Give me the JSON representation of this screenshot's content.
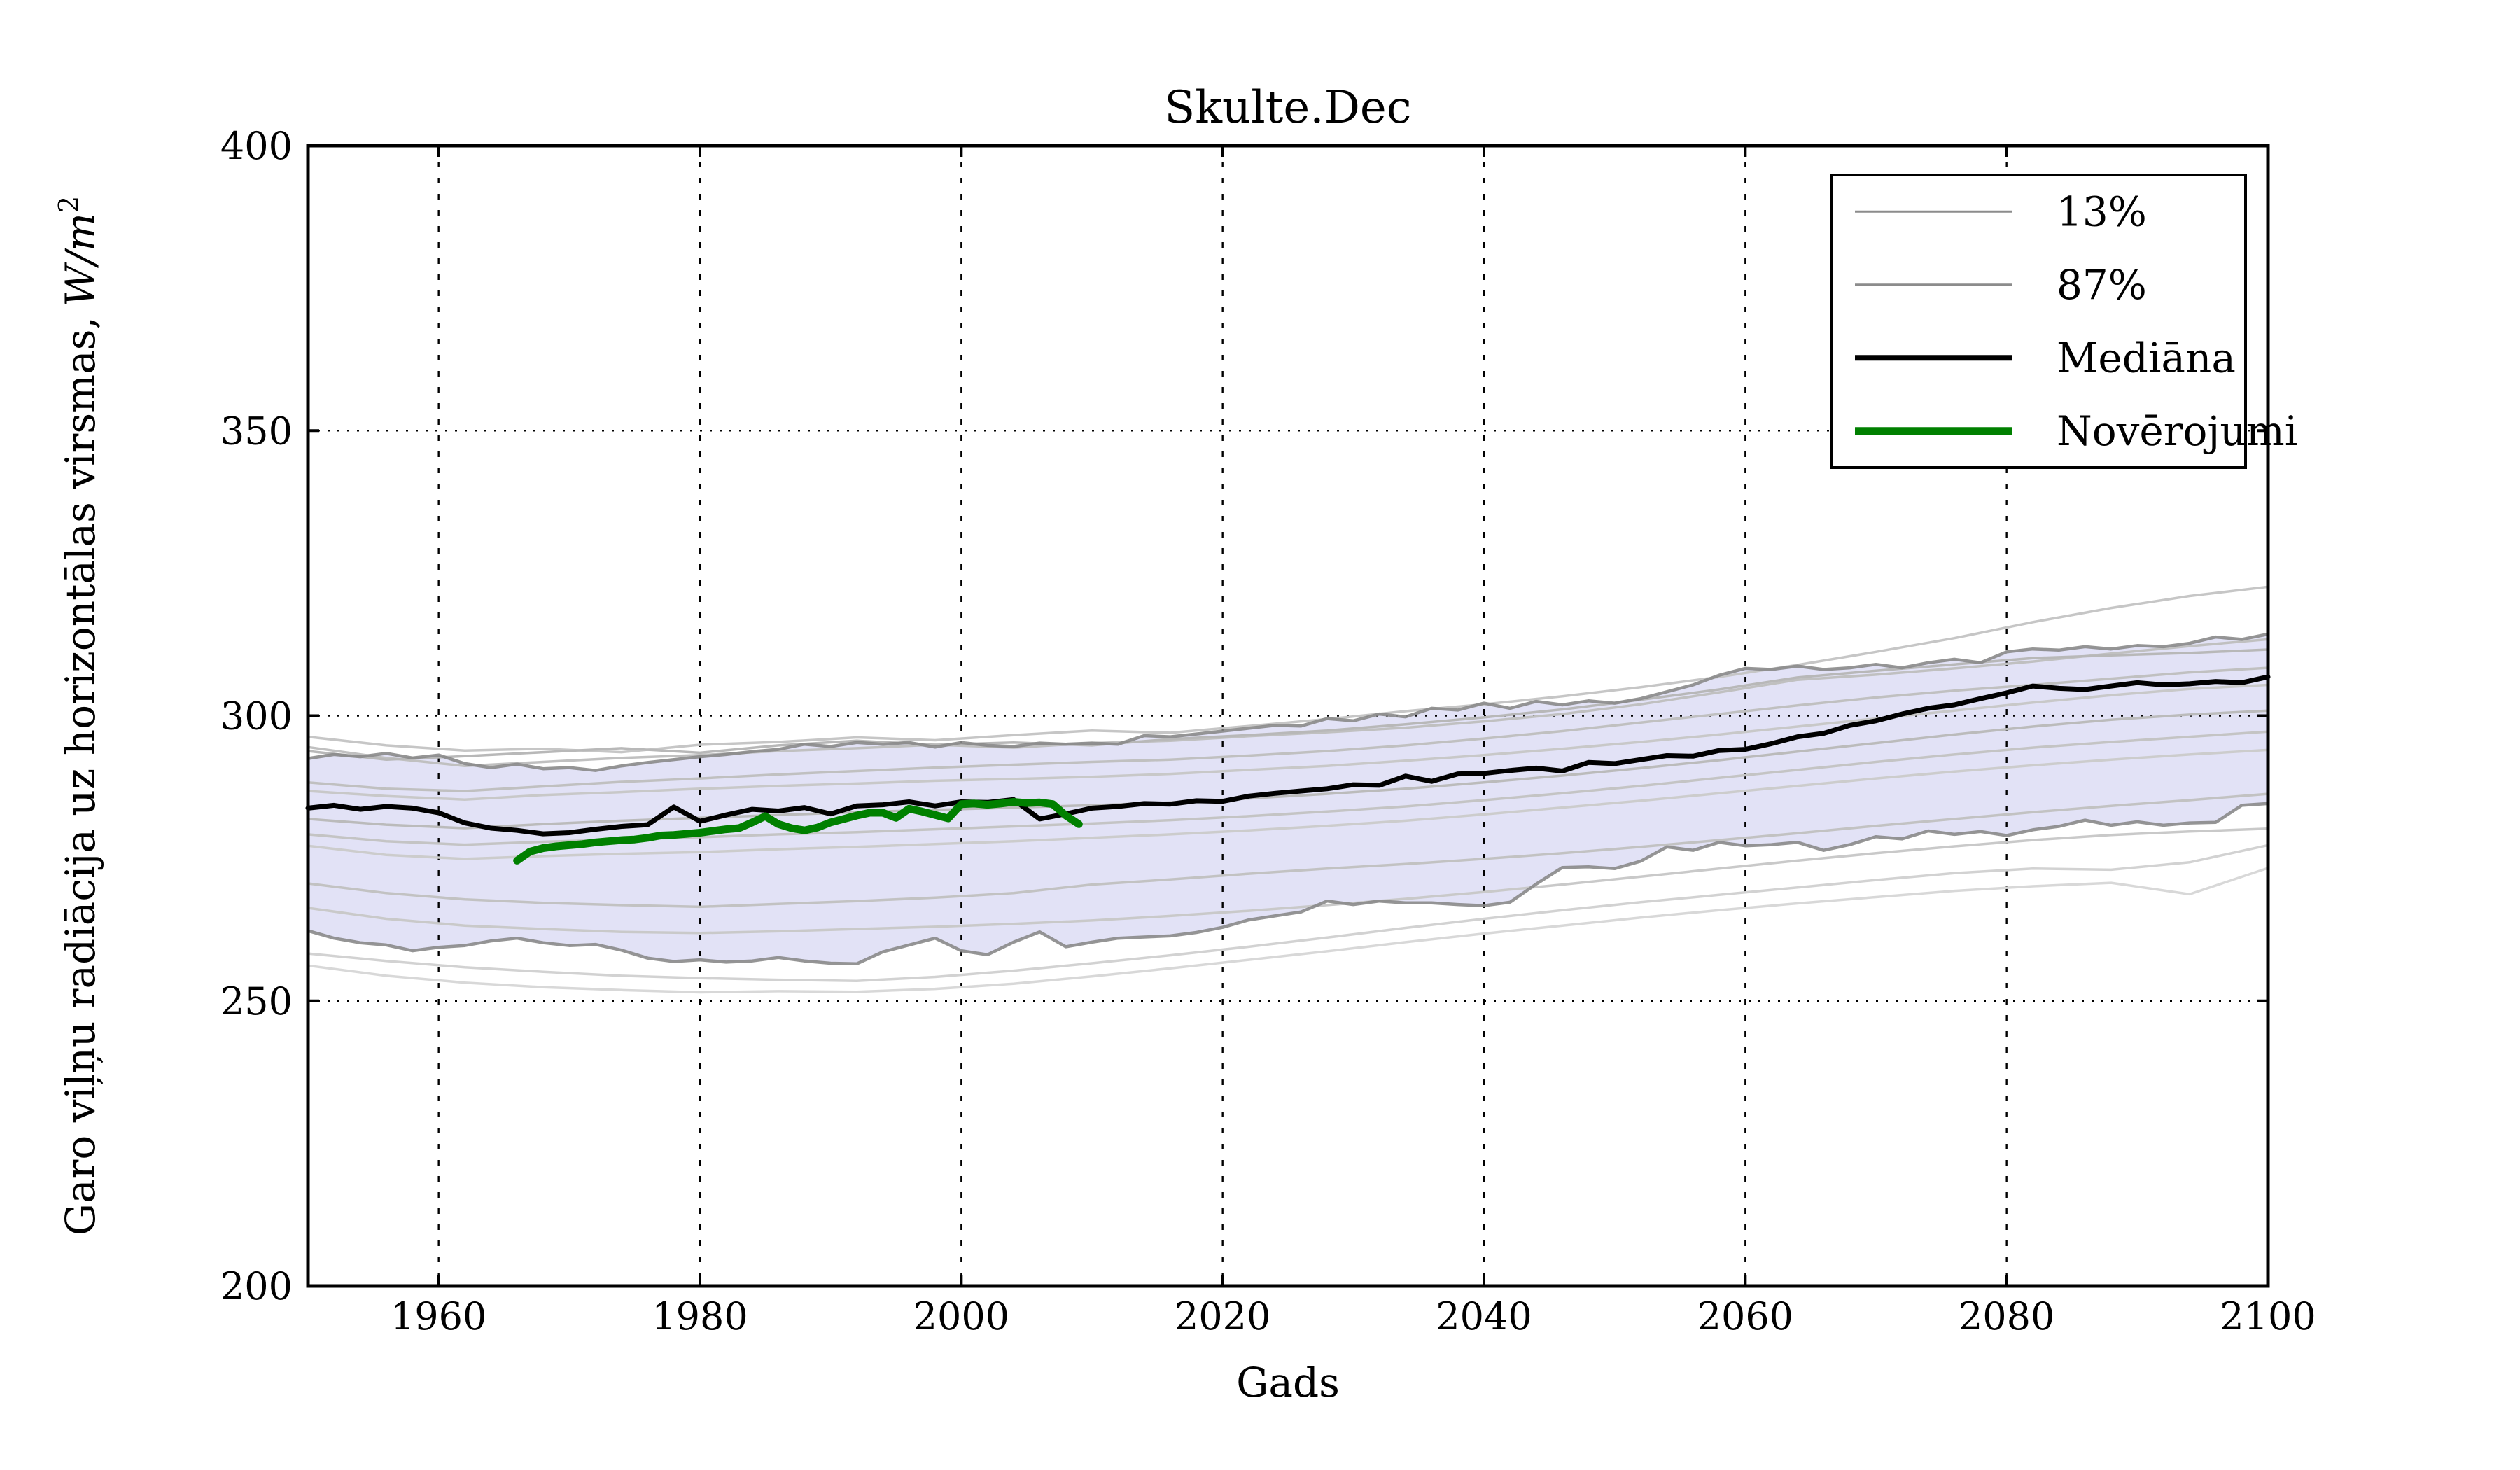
{
  "title": "Skulte.Dec",
  "colors": {
    "background": "#ffffff",
    "band_fill": "#e2e2f6",
    "percentile_line": "#8a8a8a",
    "median_line": "#000000",
    "observations_line": "#008000",
    "grid": "#000000",
    "axis": "#000000"
  },
  "chart_data": {
    "type": "line",
    "title": "Skulte.Dec",
    "xlabel": "Gads",
    "ylabel": "Garo viļņu radiācija uz horizontālas virsmas, W/m²",
    "ylabel_text": "Garo viļņu radiācija uz horizontālas virsmas,",
    "ylabel_unit": "W/m",
    "ylabel_unit_sup": "2",
    "xlim": [
      1950,
      2100
    ],
    "ylim": [
      200,
      400
    ],
    "xticks": [
      1960,
      1980,
      2000,
      2020,
      2040,
      2060,
      2080,
      2100
    ],
    "yticks": [
      200,
      250,
      300,
      350,
      400
    ],
    "grid": "dotted",
    "legend": {
      "position": "upper right",
      "entries": [
        {
          "label": "13%",
          "color": "#8c8c8c",
          "stroke_width": 3
        },
        {
          "label": "87%",
          "color": "#8c8c8c",
          "stroke_width": 3
        },
        {
          "label": "Mediāna",
          "color": "#000000",
          "stroke_width": 8
        },
        {
          "label": "Novērojumi",
          "color": "#008000",
          "stroke_width": 11
        }
      ]
    },
    "band": {
      "name": "13-87% interval",
      "fill": "#e2e2f6",
      "upper_ref": "p87",
      "lower_ref": "p13"
    },
    "series": [
      {
        "id": "p13",
        "name": "13%",
        "role": "percentile-lower",
        "color": "#8a8a8a",
        "width": 4.5,
        "opacity": 0.9,
        "x0": 1950,
        "dx": 2,
        "values": [
          262.3,
          261.0,
          260.2,
          259.8,
          258.8,
          259.4,
          259.7,
          260.5,
          261.0,
          260.2,
          259.7,
          259.9,
          258.9,
          257.5,
          256.9,
          257.2,
          256.8,
          257.0,
          257.6,
          257.0,
          256.6,
          256.5,
          258.6,
          259.8,
          261.0,
          258.8,
          258.1,
          260.3,
          262.1,
          259.5,
          260.3,
          261.0,
          261.2,
          261.4,
          262.0,
          262.9,
          264.2,
          264.9,
          265.6,
          267.5,
          266.9,
          267.5,
          267.2,
          267.2,
          266.9,
          266.7,
          267.3,
          270.5,
          273.4,
          273.5,
          273.2,
          274.5,
          277.0,
          276.4,
          277.8,
          277.2,
          277.4,
          277.8,
          276.4,
          277.4,
          278.8,
          278.4,
          279.8,
          279.2,
          279.7,
          279.0,
          280.0,
          280.6,
          281.7,
          280.8,
          281.4,
          280.8,
          281.2,
          281.3,
          284.3,
          284.6
        ]
      },
      {
        "id": "p87",
        "name": "87%",
        "role": "percentile-upper",
        "color": "#8a8a8a",
        "width": 4.5,
        "opacity": 0.9,
        "x0": 1950,
        "dx": 2,
        "values": [
          292.5,
          293.2,
          292.8,
          293.4,
          292.6,
          293.1,
          291.6,
          290.9,
          291.5,
          290.7,
          290.9,
          290.4,
          291.2,
          291.8,
          292.3,
          292.8,
          293.2,
          293.7,
          294.1,
          295.0,
          294.6,
          295.3,
          295.0,
          295.3,
          294.5,
          295.3,
          294.8,
          294.6,
          295.2,
          295.0,
          295.2,
          295.0,
          296.5,
          296.3,
          296.8,
          297.3,
          297.8,
          298.3,
          298.2,
          299.5,
          299.1,
          300.3,
          299.8,
          301.3,
          301.0,
          302.2,
          301.3,
          302.5,
          301.9,
          302.6,
          302.2,
          303.0,
          304.2,
          305.4,
          307.1,
          308.3,
          308.1,
          308.7,
          308.1,
          308.4,
          309.0,
          308.4,
          309.3,
          309.9,
          309.3,
          311.2,
          311.7,
          311.5,
          312.1,
          311.7,
          312.3,
          312.1,
          312.7,
          313.8,
          313.4,
          314.3
        ]
      },
      {
        "id": "median",
        "name": "Mediāna",
        "role": "median",
        "color": "#000000",
        "width": 7,
        "opacity": 1,
        "x0": 1950,
        "dx": 2,
        "values": [
          283.8,
          284.3,
          283.6,
          284.1,
          283.8,
          283.0,
          281.2,
          280.3,
          279.9,
          279.3,
          279.5,
          280.1,
          280.6,
          280.9,
          284.0,
          281.5,
          282.6,
          283.6,
          283.3,
          283.9,
          282.8,
          284.2,
          284.4,
          284.9,
          284.2,
          284.9,
          284.8,
          285.3,
          281.9,
          282.8,
          283.8,
          284.1,
          284.6,
          284.5,
          285.1,
          285.0,
          285.9,
          286.4,
          286.8,
          287.2,
          287.9,
          287.8,
          289.4,
          288.5,
          289.8,
          289.9,
          290.4,
          290.8,
          290.3,
          291.8,
          291.6,
          292.3,
          293.0,
          292.9,
          293.9,
          294.1,
          295.1,
          296.3,
          296.9,
          298.3,
          299.1,
          300.3,
          301.3,
          301.9,
          303.0,
          304.0,
          305.2,
          304.8,
          304.6,
          305.2,
          305.8,
          305.4,
          305.6,
          306.0,
          305.8,
          306.8
        ]
      },
      {
        "id": "observations",
        "name": "Novērojumi",
        "role": "observations",
        "color": "#008000",
        "width": 11,
        "opacity": 1,
        "x0": 1966,
        "dx": 1,
        "values": [
          274.6,
          276.2,
          276.8,
          277.1,
          277.3,
          277.5,
          277.8,
          278.0,
          278.2,
          278.3,
          278.6,
          279.0,
          279.1,
          279.3,
          279.5,
          279.8,
          280.1,
          280.3,
          281.3,
          282.4,
          281.0,
          280.3,
          279.9,
          280.4,
          281.3,
          281.9,
          282.5,
          283.0,
          283.0,
          282.1,
          283.7,
          283.2,
          282.6,
          282.0,
          284.5,
          284.6,
          284.4,
          284.6,
          284.9,
          284.7,
          284.8,
          284.5,
          282.5,
          281.0
        ]
      }
    ],
    "ensemble_members": {
      "role": "model-runs",
      "x0": 1950,
      "dx": 6,
      "width": 3.5,
      "runs": [
        {
          "color": "#c6c6c6",
          "values": [
            296.3,
            294.8,
            293.9,
            294.2,
            293.6,
            294.9,
            295.4,
            296.2,
            295.7,
            296.6,
            297.4,
            297.0,
            298.2,
            299.4,
            300.8,
            302.0,
            303.4,
            305.0,
            306.8,
            308.9,
            311.2,
            313.6,
            316.4,
            318.9,
            321.0,
            322.6
          ]
        },
        {
          "color": "#c0c0c0",
          "values": [
            294.5,
            292.6,
            291.2,
            291.9,
            292.6,
            293.1,
            293.8,
            294.3,
            294.9,
            294.4,
            295.2,
            295.6,
            296.4,
            297.1,
            297.9,
            299.0,
            300.3,
            302.0,
            304.1,
            306.3,
            307.2,
            308.3,
            309.5,
            310.9,
            312.2,
            313.4
          ]
        },
        {
          "color": "#b8b8b8",
          "values": [
            293.8,
            292.3,
            292.9,
            293.6,
            294.3,
            293.5,
            294.8,
            295.6,
            294.9,
            295.3,
            294.8,
            295.9,
            296.6,
            297.4,
            298.5,
            299.7,
            301.1,
            302.8,
            304.6,
            306.7,
            307.9,
            309.0,
            310.1,
            310.6,
            311.0,
            311.6
          ]
        },
        {
          "color": "#c0c0c0",
          "values": [
            288.3,
            287.2,
            286.8,
            287.6,
            288.4,
            289.0,
            289.7,
            290.3,
            290.9,
            291.4,
            291.9,
            292.3,
            293.0,
            293.8,
            294.8,
            296.0,
            297.3,
            298.8,
            300.3,
            301.8,
            303.2,
            304.4,
            305.4,
            306.5,
            307.6,
            308.4
          ]
        },
        {
          "color": "#c8c8c8",
          "values": [
            286.8,
            285.9,
            285.3,
            286.1,
            286.6,
            287.2,
            287.7,
            288.1,
            288.6,
            288.9,
            289.3,
            289.8,
            290.5,
            291.2,
            292.1,
            293.1,
            294.2,
            295.4,
            296.7,
            298.1,
            299.5,
            300.9,
            302.3,
            303.6,
            304.7,
            305.4
          ]
        },
        {
          "color": "#bbbbbb",
          "values": [
            281.9,
            280.9,
            280.3,
            281.0,
            281.6,
            282.1,
            282.6,
            283.1,
            283.5,
            283.9,
            284.3,
            284.8,
            285.5,
            286.3,
            287.2,
            288.3,
            289.5,
            290.8,
            292.2,
            293.7,
            295.2,
            296.7,
            298.1,
            299.3,
            300.2,
            300.9
          ]
        },
        {
          "color": "#c4c4c4",
          "values": [
            279.2,
            278.0,
            277.4,
            277.9,
            278.3,
            278.7,
            279.2,
            279.6,
            280.1,
            280.6,
            281.1,
            281.7,
            282.4,
            283.2,
            284.1,
            285.2,
            286.4,
            287.7,
            289.1,
            290.5,
            291.9,
            293.2,
            294.4,
            295.4,
            296.3,
            297.2
          ]
        },
        {
          "color": "#cccccc",
          "values": [
            277.2,
            275.6,
            274.9,
            275.4,
            275.8,
            276.1,
            276.6,
            277.0,
            277.5,
            278.0,
            278.6,
            279.2,
            279.9,
            280.7,
            281.6,
            282.7,
            283.9,
            285.1,
            286.4,
            287.7,
            289.0,
            290.2,
            291.3,
            292.3,
            293.2,
            294.0
          ]
        },
        {
          "color": "#c2c2c2",
          "values": [
            270.6,
            268.9,
            267.8,
            267.2,
            266.8,
            266.5,
            267.0,
            267.5,
            268.1,
            268.9,
            270.4,
            271.3,
            272.3,
            273.2,
            274.0,
            274.9,
            275.9,
            277.0,
            278.2,
            279.4,
            280.7,
            281.9,
            283.1,
            284.2,
            285.2,
            286.3
          ]
        },
        {
          "color": "#c9c9c9",
          "values": [
            266.3,
            264.4,
            263.2,
            262.6,
            262.1,
            261.9,
            262.2,
            262.6,
            263.0,
            263.5,
            264.1,
            264.9,
            265.8,
            266.8,
            267.9,
            269.1,
            270.4,
            271.8,
            273.2,
            274.6,
            275.9,
            277.1,
            278.2,
            279.1,
            279.7,
            280.2
          ]
        },
        {
          "color": "#d2d2d2",
          "values": [
            258.3,
            257.0,
            255.9,
            255.1,
            254.4,
            254.0,
            253.7,
            253.5,
            254.2,
            255.3,
            256.6,
            258.0,
            259.5,
            261.1,
            262.8,
            264.4,
            265.9,
            267.3,
            268.6,
            269.9,
            271.2,
            272.4,
            273.2,
            273.0,
            274.3,
            277.3
          ]
        },
        {
          "color": "#d8d8d8",
          "values": [
            256.2,
            254.4,
            253.2,
            252.4,
            251.9,
            251.5,
            251.7,
            251.6,
            252.1,
            253.0,
            254.3,
            255.7,
            257.2,
            258.7,
            260.3,
            261.8,
            263.2,
            264.6,
            265.9,
            267.1,
            268.2,
            269.3,
            270.1,
            270.7,
            268.7,
            273.3
          ]
        }
      ]
    }
  }
}
